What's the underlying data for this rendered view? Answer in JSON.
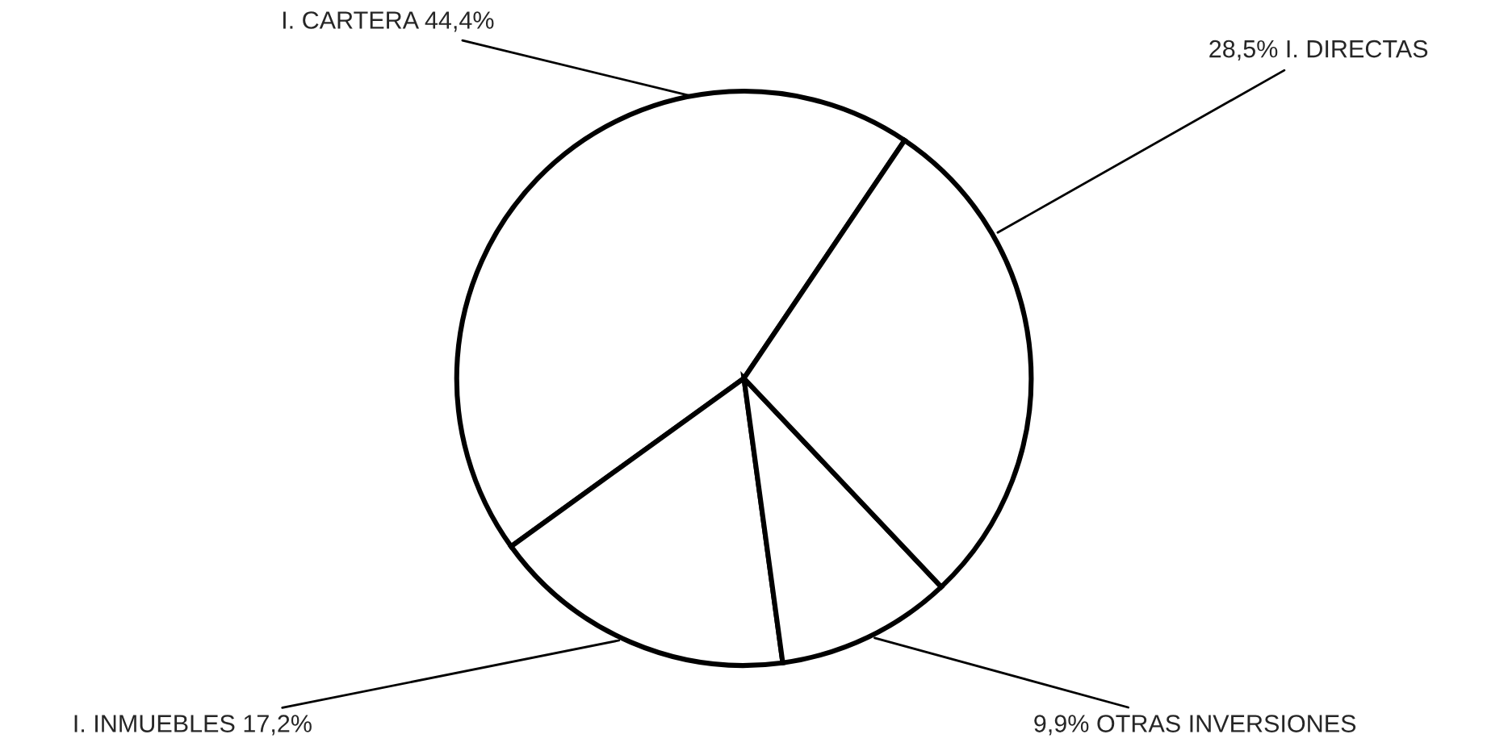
{
  "chart_data": {
    "type": "pie",
    "categories": [
      "I. CARTERA 44,4%",
      "I. INMUEBLES 17,2%",
      "9,9% OTRAS INVERSIONES",
      "28,5% I. DIRECTAS"
    ],
    "values": [
      44.4,
      17.2,
      9.9,
      28.5
    ],
    "colors": [
      "#ffffff",
      "#ffffff",
      "#ffffff",
      "#ffffff"
    ]
  }
}
